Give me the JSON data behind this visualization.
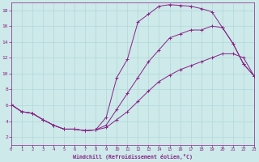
{
  "xlabel": "Windchill (Refroidissement éolien,°C)",
  "background_color": "#cde9e9",
  "grid_color": "#b0d8d8",
  "line_color": "#882288",
  "xlim": [
    0,
    23
  ],
  "ylim": [
    1,
    19
  ],
  "xticks": [
    0,
    1,
    2,
    3,
    4,
    5,
    6,
    7,
    8,
    9,
    10,
    11,
    12,
    13,
    14,
    15,
    16,
    17,
    18,
    19,
    20,
    21,
    22,
    23
  ],
  "yticks": [
    2,
    4,
    6,
    8,
    10,
    12,
    14,
    16,
    18
  ],
  "curve1_x": [
    0,
    1,
    2,
    3,
    4,
    5,
    6,
    7,
    8,
    9,
    10,
    11,
    12,
    13,
    14,
    15,
    16,
    17,
    18,
    19,
    20,
    21,
    22,
    23
  ],
  "curve1_y": [
    6.1,
    5.2,
    5.0,
    4.2,
    3.5,
    3.0,
    3.0,
    2.8,
    2.9,
    4.5,
    9.5,
    11.8,
    16.5,
    17.5,
    18.5,
    18.7,
    18.6,
    18.5,
    18.2,
    17.8,
    15.8,
    13.8,
    11.2,
    9.7
  ],
  "curve2_x": [
    0,
    1,
    2,
    3,
    4,
    5,
    6,
    7,
    8,
    9,
    10,
    11,
    12,
    13,
    14,
    15,
    16,
    17,
    18,
    19,
    20,
    21,
    22,
    23
  ],
  "curve2_y": [
    6.1,
    5.2,
    5.0,
    4.2,
    3.5,
    3.0,
    3.0,
    2.8,
    2.9,
    3.5,
    5.5,
    7.5,
    9.5,
    11.5,
    13.0,
    14.5,
    15.0,
    15.5,
    15.5,
    16.0,
    15.8,
    13.8,
    11.2,
    9.7
  ],
  "curve3_x": [
    0,
    1,
    2,
    3,
    4,
    5,
    6,
    7,
    8,
    9,
    10,
    11,
    12,
    13,
    14,
    15,
    16,
    17,
    18,
    19,
    20,
    21,
    22,
    23
  ],
  "curve3_y": [
    6.1,
    5.2,
    5.0,
    4.2,
    3.5,
    3.0,
    3.0,
    2.8,
    2.9,
    3.2,
    4.2,
    5.2,
    6.5,
    7.8,
    9.0,
    9.8,
    10.5,
    11.0,
    11.5,
    12.0,
    12.5,
    12.5,
    12.0,
    9.7
  ]
}
